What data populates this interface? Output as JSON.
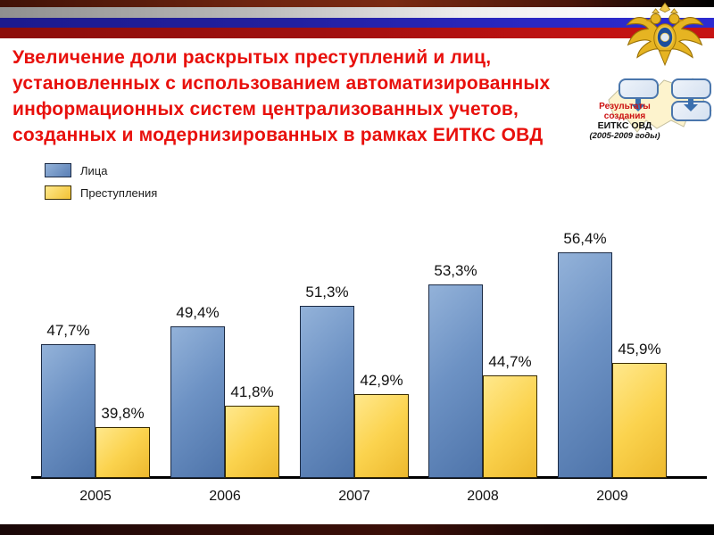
{
  "slide": {
    "kind": "presentation-slide"
  },
  "title": {
    "lines": [
      "Увеличение доли раскрытых преступлений и лиц,",
      "установленных с использованием автоматизированных",
      "информационных систем централизованных учетов,",
      "созданных и модернизированных в рамках ЕИТКС ОВД"
    ],
    "color": "#e8100c"
  },
  "logo": {
    "emblem_name": "mvd-double-headed-eagle",
    "caption_lines": [
      "Результаты",
      "создания",
      "ЕИТКС ОВД",
      "(2005-2009 годы)"
    ]
  },
  "legend": {
    "items": [
      {
        "label": "Лица",
        "color": "#6d92c4"
      },
      {
        "label": "Преступления",
        "color": "#fbd34e"
      }
    ]
  },
  "chart_data": {
    "type": "bar",
    "categories": [
      "2005",
      "2006",
      "2007",
      "2008",
      "2009"
    ],
    "series": [
      {
        "name": "Лица",
        "values": [
          47.7,
          49.4,
          51.3,
          53.3,
          56.4
        ],
        "labels": [
          "47,7%",
          "49,4%",
          "51,3%",
          "53,3%",
          "56,4%"
        ],
        "color": "#6d92c4",
        "border_color": "#1b2a44",
        "css_class": "persons"
      },
      {
        "name": "Преступления",
        "values": [
          39.8,
          41.8,
          42.9,
          44.7,
          45.9
        ],
        "labels": [
          "39,8%",
          "41,8%",
          "42,9%",
          "44,7%",
          "45,9%"
        ],
        "color": "#fbd34e",
        "border_color": "#3a2c00",
        "css_class": "crimes"
      }
    ],
    "value_suffix": "%",
    "decimal_separator": ",",
    "baseline_value": 35,
    "ylim": [
      35,
      60
    ],
    "grid": false,
    "legend_position": "top-left",
    "axis_line_color": "#000000",
    "bar_label_position": "above"
  }
}
